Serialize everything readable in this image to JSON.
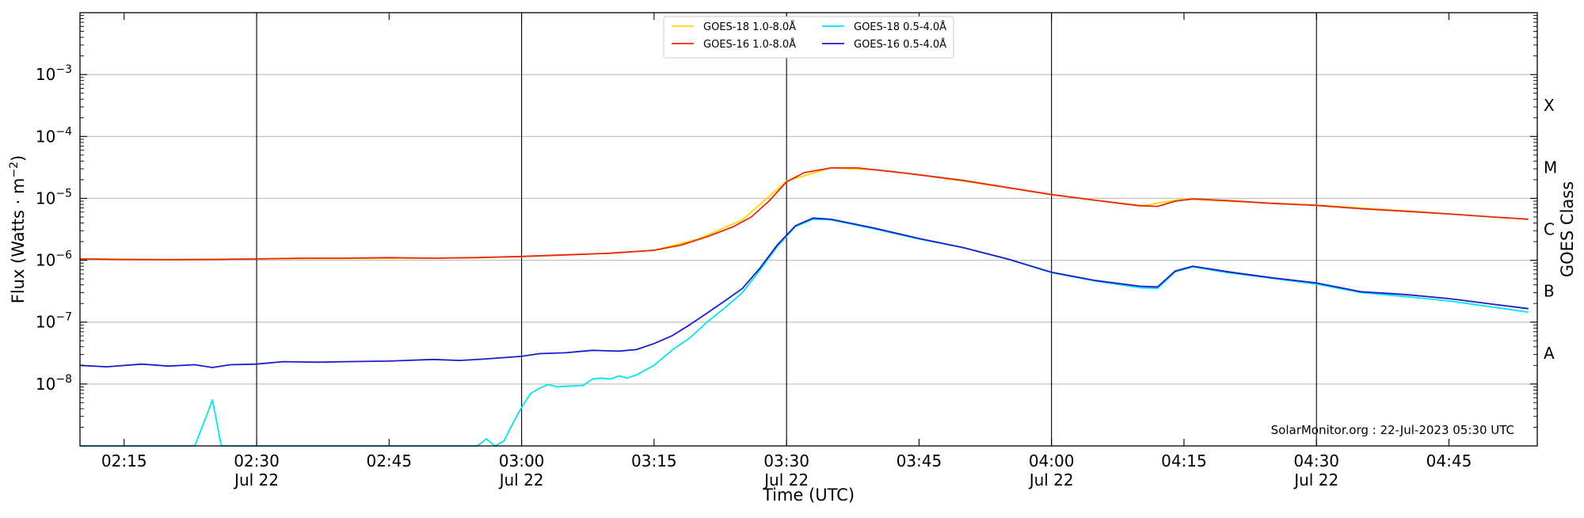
{
  "chart_data": {
    "type": "line",
    "title": "",
    "xlabel": "Time (UTC)",
    "ylabel": "Flux (Watts · m⁻²)",
    "y_scale": "log",
    "ylim": [
      1e-09,
      0.01
    ],
    "xlim": [
      "2023-07-22T02:10",
      "2023-07-22T04:55"
    ],
    "grid": "horizontal at each decade",
    "legend_position": "top-center",
    "right_axis_label": "GOES Class",
    "goes_classes": [
      "A",
      "B",
      "C",
      "M",
      "X"
    ],
    "y_ticks": [
      {
        "value": 1e-08,
        "label": "10",
        "exp": "−8"
      },
      {
        "value": 1e-07,
        "label": "10",
        "exp": "−7"
      },
      {
        "value": 1e-06,
        "label": "10",
        "exp": "−6"
      },
      {
        "value": 1e-05,
        "label": "10",
        "exp": "−5"
      },
      {
        "value": 0.0001,
        "label": "10",
        "exp": "−4"
      },
      {
        "value": 0.001,
        "label": "10",
        "exp": "−3"
      }
    ],
    "x_ticks": [
      {
        "time": "2023-07-22T02:15",
        "label": "02:15",
        "sub": ""
      },
      {
        "time": "2023-07-22T02:30",
        "label": "02:30",
        "sub": "Jul 22"
      },
      {
        "time": "2023-07-22T02:45",
        "label": "02:45",
        "sub": ""
      },
      {
        "time": "2023-07-22T03:00",
        "label": "03:00",
        "sub": "Jul 22"
      },
      {
        "time": "2023-07-22T03:15",
        "label": "03:15",
        "sub": ""
      },
      {
        "time": "2023-07-22T03:30",
        "label": "03:30",
        "sub": "Jul 22"
      },
      {
        "time": "2023-07-22T03:45",
        "label": "03:45",
        "sub": ""
      },
      {
        "time": "2023-07-22T04:00",
        "label": "04:00",
        "sub": "Jul 22"
      },
      {
        "time": "2023-07-22T04:15",
        "label": "04:15",
        "sub": ""
      },
      {
        "time": "2023-07-22T04:30",
        "label": "04:30",
        "sub": "Jul 22"
      },
      {
        "time": "2023-07-22T04:45",
        "label": "04:45",
        "sub": ""
      }
    ],
    "x_labeled_vlines": [
      "2023-07-22T02:30",
      "2023-07-22T03:00",
      "2023-07-22T03:30",
      "2023-07-22T04:00",
      "2023-07-22T04:30"
    ],
    "annotation": "SolarMonitor.org : 22-Jul-2023 05:30 UTC",
    "series": [
      {
        "name": "GOES-18 1.0-8.0Å",
        "color": "#ffd700",
        "points": [
          [
            "2023-07-22T02:10",
            1.05e-06
          ],
          [
            "2023-07-22T02:20",
            1.03e-06
          ],
          [
            "2023-07-22T02:30",
            1.05e-06
          ],
          [
            "2023-07-22T02:40",
            1.07e-06
          ],
          [
            "2023-07-22T02:50",
            1.08e-06
          ],
          [
            "2023-07-22T03:00",
            1.15e-06
          ],
          [
            "2023-07-22T03:05",
            1.22e-06
          ],
          [
            "2023-07-22T03:10",
            1.3e-06
          ],
          [
            "2023-07-22T03:15",
            1.45e-06
          ],
          [
            "2023-07-22T03:20",
            2.2e-06
          ],
          [
            "2023-07-22T03:25",
            4.5e-06
          ],
          [
            "2023-07-22T03:30",
            1.9e-05
          ],
          [
            "2023-07-22T03:35",
            3.1e-05
          ],
          [
            "2023-07-22T03:40",
            2.9e-05
          ],
          [
            "2023-07-22T03:45",
            2.4e-05
          ],
          [
            "2023-07-22T03:50",
            1.9e-05
          ],
          [
            "2023-07-22T04:00",
            1.15e-05
          ],
          [
            "2023-07-22T04:10",
            7.5e-06
          ],
          [
            "2023-07-22T04:15",
            9.8e-06
          ],
          [
            "2023-07-22T04:20",
            9e-06
          ],
          [
            "2023-07-22T04:30",
            7.8e-06
          ],
          [
            "2023-07-22T04:40",
            6.3e-06
          ],
          [
            "2023-07-22T04:50",
            5e-06
          ],
          [
            "2023-07-22T04:54",
            4.6e-06
          ]
        ]
      },
      {
        "name": "GOES-16 1.0-8.0Å",
        "color": "#e8280e",
        "points": [
          [
            "2023-07-22T02:10",
            1.05e-06
          ],
          [
            "2023-07-22T02:15",
            1.03e-06
          ],
          [
            "2023-07-22T02:20",
            1.02e-06
          ],
          [
            "2023-07-22T02:25",
            1.03e-06
          ],
          [
            "2023-07-22T02:30",
            1.05e-06
          ],
          [
            "2023-07-22T02:35",
            1.08e-06
          ],
          [
            "2023-07-22T02:40",
            1.08e-06
          ],
          [
            "2023-07-22T02:45",
            1.1e-06
          ],
          [
            "2023-07-22T02:50",
            1.08e-06
          ],
          [
            "2023-07-22T02:55",
            1.1e-06
          ],
          [
            "2023-07-22T03:00",
            1.15e-06
          ],
          [
            "2023-07-22T03:05",
            1.22e-06
          ],
          [
            "2023-07-22T03:10",
            1.3e-06
          ],
          [
            "2023-07-22T03:15",
            1.45e-06
          ],
          [
            "2023-07-22T03:18",
            1.75e-06
          ],
          [
            "2023-07-22T03:21",
            2.4e-06
          ],
          [
            "2023-07-22T03:24",
            3.5e-06
          ],
          [
            "2023-07-22T03:26",
            5e-06
          ],
          [
            "2023-07-22T03:28",
            9e-06
          ],
          [
            "2023-07-22T03:30",
            1.85e-05
          ],
          [
            "2023-07-22T03:32",
            2.6e-05
          ],
          [
            "2023-07-22T03:35",
            3.1e-05
          ],
          [
            "2023-07-22T03:38",
            3.1e-05
          ],
          [
            "2023-07-22T03:42",
            2.7e-05
          ],
          [
            "2023-07-22T03:45",
            2.4e-05
          ],
          [
            "2023-07-22T03:50",
            1.95e-05
          ],
          [
            "2023-07-22T03:55",
            1.5e-05
          ],
          [
            "2023-07-22T04:00",
            1.15e-05
          ],
          [
            "2023-07-22T04:05",
            9.3e-06
          ],
          [
            "2023-07-22T04:10",
            7.6e-06
          ],
          [
            "2023-07-22T04:12",
            7.4e-06
          ],
          [
            "2023-07-22T04:14",
            9e-06
          ],
          [
            "2023-07-22T04:16",
            9.8e-06
          ],
          [
            "2023-07-22T04:20",
            9.2e-06
          ],
          [
            "2023-07-22T04:25",
            8.3e-06
          ],
          [
            "2023-07-22T04:30",
            7.7e-06
          ],
          [
            "2023-07-22T04:35",
            6.8e-06
          ],
          [
            "2023-07-22T04:40",
            6.2e-06
          ],
          [
            "2023-07-22T04:45",
            5.6e-06
          ],
          [
            "2023-07-22T04:50",
            5e-06
          ],
          [
            "2023-07-22T04:54",
            4.6e-06
          ]
        ]
      },
      {
        "name": "GOES-18 0.5-4.0Å",
        "color": "#00e5ee",
        "points": [
          [
            "2023-07-22T02:10",
            1e-09
          ],
          [
            "2023-07-22T02:23",
            1e-09
          ],
          [
            "2023-07-22T02:25",
            5.5e-09
          ],
          [
            "2023-07-22T02:26",
            1e-09
          ],
          [
            "2023-07-22T02:55",
            1e-09
          ],
          [
            "2023-07-22T02:56",
            1.3e-09
          ],
          [
            "2023-07-22T02:57",
            1e-09
          ],
          [
            "2023-07-22T02:58",
            1.2e-09
          ],
          [
            "2023-07-22T02:59",
            2.3e-09
          ],
          [
            "2023-07-22T03:00",
            4.2e-09
          ],
          [
            "2023-07-22T03:01",
            7e-09
          ],
          [
            "2023-07-22T03:02",
            8.5e-09
          ],
          [
            "2023-07-22T03:03",
            9.8e-09
          ],
          [
            "2023-07-22T03:04",
            9e-09
          ],
          [
            "2023-07-22T03:05",
            9.2e-09
          ],
          [
            "2023-07-22T03:07",
            9.5e-09
          ],
          [
            "2023-07-22T03:08",
            1.2e-08
          ],
          [
            "2023-07-22T03:09",
            1.25e-08
          ],
          [
            "2023-07-22T03:10",
            1.2e-08
          ],
          [
            "2023-07-22T03:11",
            1.35e-08
          ],
          [
            "2023-07-22T03:12",
            1.25e-08
          ],
          [
            "2023-07-22T03:13",
            1.4e-08
          ],
          [
            "2023-07-22T03:15",
            2e-08
          ],
          [
            "2023-07-22T03:17",
            3.5e-08
          ],
          [
            "2023-07-22T03:19",
            5.5e-08
          ],
          [
            "2023-07-22T03:21",
            1e-07
          ],
          [
            "2023-07-22T03:23",
            1.7e-07
          ],
          [
            "2023-07-22T03:25",
            3e-07
          ],
          [
            "2023-07-22T03:27",
            7e-07
          ],
          [
            "2023-07-22T03:29",
            1.7e-06
          ],
          [
            "2023-07-22T03:31",
            3.5e-06
          ],
          [
            "2023-07-22T03:33",
            4.6e-06
          ],
          [
            "2023-07-22T03:35",
            4.5e-06
          ],
          [
            "2023-07-22T03:40",
            3.2e-06
          ],
          [
            "2023-07-22T03:45",
            2.2e-06
          ],
          [
            "2023-07-22T03:50",
            1.6e-06
          ],
          [
            "2023-07-22T03:55",
            1.05e-06
          ],
          [
            "2023-07-22T04:00",
            6.3e-07
          ],
          [
            "2023-07-22T04:05",
            4.6e-07
          ],
          [
            "2023-07-22T04:10",
            3.6e-07
          ],
          [
            "2023-07-22T04:12",
            3.5e-07
          ],
          [
            "2023-07-22T04:14",
            6.5e-07
          ],
          [
            "2023-07-22T04:16",
            7.8e-07
          ],
          [
            "2023-07-22T04:20",
            6.3e-07
          ],
          [
            "2023-07-22T04:25",
            5.1e-07
          ],
          [
            "2023-07-22T04:30",
            4.1e-07
          ],
          [
            "2023-07-22T04:35",
            3e-07
          ],
          [
            "2023-07-22T04:40",
            2.6e-07
          ],
          [
            "2023-07-22T04:45",
            2.2e-07
          ],
          [
            "2023-07-22T04:50",
            1.75e-07
          ],
          [
            "2023-07-22T04:54",
            1.45e-07
          ]
        ]
      },
      {
        "name": "GOES-16 0.5-4.0Å",
        "color": "#1c1ccc",
        "points": [
          [
            "2023-07-22T02:10",
            2e-08
          ],
          [
            "2023-07-22T02:13",
            1.9e-08
          ],
          [
            "2023-07-22T02:17",
            2.1e-08
          ],
          [
            "2023-07-22T02:20",
            1.95e-08
          ],
          [
            "2023-07-22T02:23",
            2.05e-08
          ],
          [
            "2023-07-22T02:25",
            1.85e-08
          ],
          [
            "2023-07-22T02:27",
            2.05e-08
          ],
          [
            "2023-07-22T02:30",
            2.1e-08
          ],
          [
            "2023-07-22T02:33",
            2.3e-08
          ],
          [
            "2023-07-22T02:37",
            2.25e-08
          ],
          [
            "2023-07-22T02:40",
            2.3e-08
          ],
          [
            "2023-07-22T02:45",
            2.35e-08
          ],
          [
            "2023-07-22T02:50",
            2.5e-08
          ],
          [
            "2023-07-22T02:53",
            2.4e-08
          ],
          [
            "2023-07-22T02:56",
            2.55e-08
          ],
          [
            "2023-07-22T03:00",
            2.8e-08
          ],
          [
            "2023-07-22T03:02",
            3.1e-08
          ],
          [
            "2023-07-22T03:05",
            3.2e-08
          ],
          [
            "2023-07-22T03:08",
            3.5e-08
          ],
          [
            "2023-07-22T03:11",
            3.4e-08
          ],
          [
            "2023-07-22T03:13",
            3.6e-08
          ],
          [
            "2023-07-22T03:15",
            4.5e-08
          ],
          [
            "2023-07-22T03:17",
            6e-08
          ],
          [
            "2023-07-22T03:19",
            9e-08
          ],
          [
            "2023-07-22T03:21",
            1.4e-07
          ],
          [
            "2023-07-22T03:23",
            2.2e-07
          ],
          [
            "2023-07-22T03:25",
            3.5e-07
          ],
          [
            "2023-07-22T03:27",
            7.5e-07
          ],
          [
            "2023-07-22T03:29",
            1.8e-06
          ],
          [
            "2023-07-22T03:31",
            3.6e-06
          ],
          [
            "2023-07-22T03:33",
            4.8e-06
          ],
          [
            "2023-07-22T03:35",
            4.6e-06
          ],
          [
            "2023-07-22T03:40",
            3.3e-06
          ],
          [
            "2023-07-22T03:45",
            2.25e-06
          ],
          [
            "2023-07-22T03:50",
            1.6e-06
          ],
          [
            "2023-07-22T03:55",
            1.05e-06
          ],
          [
            "2023-07-22T04:00",
            6.4e-07
          ],
          [
            "2023-07-22T04:05",
            4.7e-07
          ],
          [
            "2023-07-22T04:10",
            3.8e-07
          ],
          [
            "2023-07-22T04:12",
            3.7e-07
          ],
          [
            "2023-07-22T04:14",
            6.7e-07
          ],
          [
            "2023-07-22T04:16",
            8e-07
          ],
          [
            "2023-07-22T04:20",
            6.5e-07
          ],
          [
            "2023-07-22T04:25",
            5.2e-07
          ],
          [
            "2023-07-22T04:30",
            4.3e-07
          ],
          [
            "2023-07-22T04:35",
            3.1e-07
          ],
          [
            "2023-07-22T04:40",
            2.8e-07
          ],
          [
            "2023-07-22T04:45",
            2.4e-07
          ],
          [
            "2023-07-22T04:50",
            1.95e-07
          ],
          [
            "2023-07-22T04:54",
            1.65e-07
          ]
        ]
      }
    ]
  }
}
